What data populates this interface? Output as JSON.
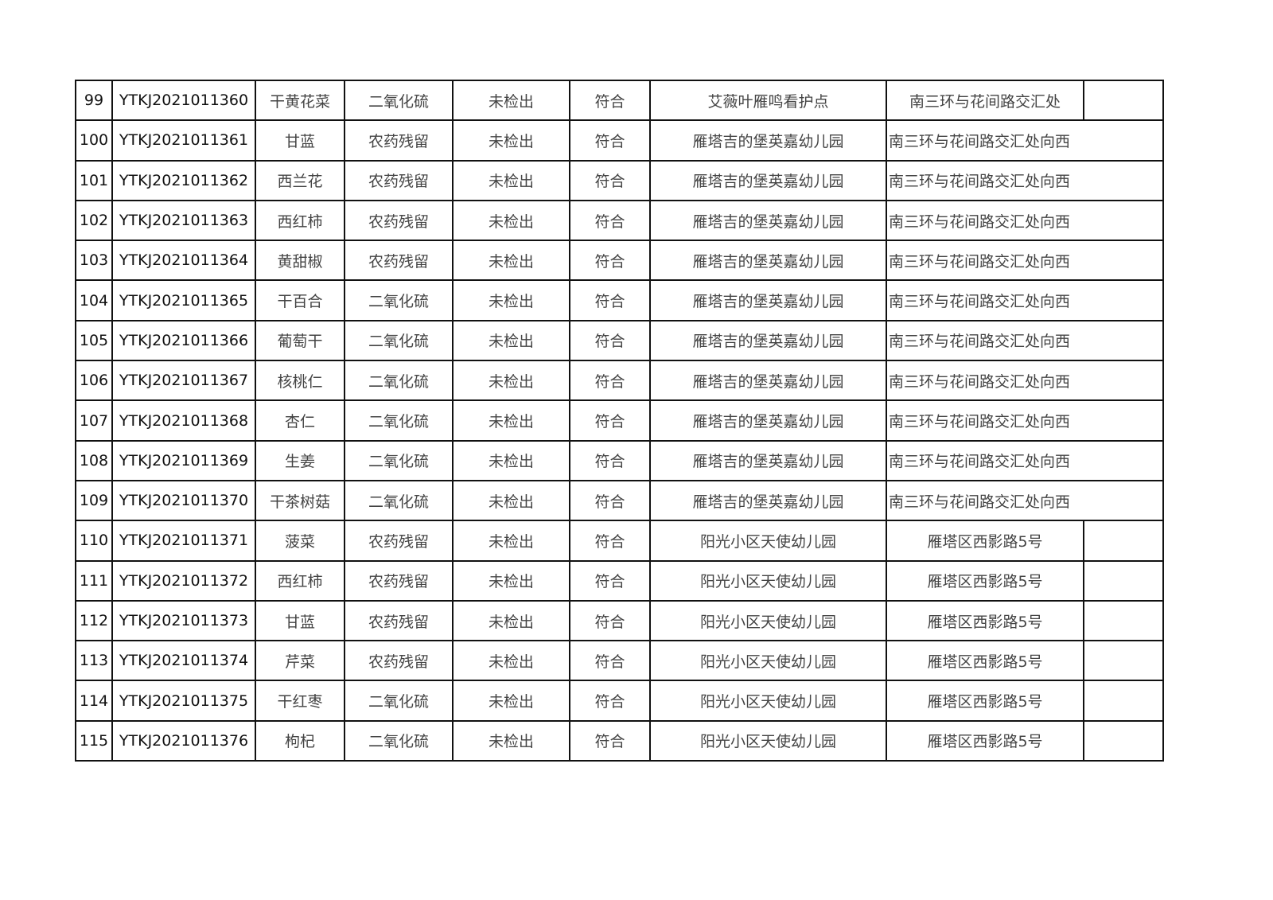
{
  "rows": [
    {
      "no": "99",
      "code": "YTKJ2021011360",
      "sample": "干黄花菜",
      "item": "二氧化硫",
      "result": "未检出",
      "verdict": "符合",
      "site": "艾薇叶雁鸣看护点",
      "address": "南三环与花间路交汇处",
      "merged": false
    },
    {
      "no": "100",
      "code": "YTKJ2021011361",
      "sample": "甘蓝",
      "item": "农药残留",
      "result": "未检出",
      "verdict": "符合",
      "site": "雁塔吉的堡英嘉幼儿园",
      "address": "南三环与花间路交汇处向西",
      "merged": true
    },
    {
      "no": "101",
      "code": "YTKJ2021011362",
      "sample": "西兰花",
      "item": "农药残留",
      "result": "未检出",
      "verdict": "符合",
      "site": "雁塔吉的堡英嘉幼儿园",
      "address": "南三环与花间路交汇处向西",
      "merged": true
    },
    {
      "no": "102",
      "code": "YTKJ2021011363",
      "sample": "西红柿",
      "item": "农药残留",
      "result": "未检出",
      "verdict": "符合",
      "site": "雁塔吉的堡英嘉幼儿园",
      "address": "南三环与花间路交汇处向西",
      "merged": true
    },
    {
      "no": "103",
      "code": "YTKJ2021011364",
      "sample": "黄甜椒",
      "item": "农药残留",
      "result": "未检出",
      "verdict": "符合",
      "site": "雁塔吉的堡英嘉幼儿园",
      "address": "南三环与花间路交汇处向西",
      "merged": true
    },
    {
      "no": "104",
      "code": "YTKJ2021011365",
      "sample": "干百合",
      "item": "二氧化硫",
      "result": "未检出",
      "verdict": "符合",
      "site": "雁塔吉的堡英嘉幼儿园",
      "address": "南三环与花间路交汇处向西",
      "merged": true
    },
    {
      "no": "105",
      "code": "YTKJ2021011366",
      "sample": "葡萄干",
      "item": "二氧化硫",
      "result": "未检出",
      "verdict": "符合",
      "site": "雁塔吉的堡英嘉幼儿园",
      "address": "南三环与花间路交汇处向西",
      "merged": true
    },
    {
      "no": "106",
      "code": "YTKJ2021011367",
      "sample": "核桃仁",
      "item": "二氧化硫",
      "result": "未检出",
      "verdict": "符合",
      "site": "雁塔吉的堡英嘉幼儿园",
      "address": "南三环与花间路交汇处向西",
      "merged": true
    },
    {
      "no": "107",
      "code": "YTKJ2021011368",
      "sample": "杏仁",
      "item": "二氧化硫",
      "result": "未检出",
      "verdict": "符合",
      "site": "雁塔吉的堡英嘉幼儿园",
      "address": "南三环与花间路交汇处向西",
      "merged": true
    },
    {
      "no": "108",
      "code": "YTKJ2021011369",
      "sample": "生姜",
      "item": "二氧化硫",
      "result": "未检出",
      "verdict": "符合",
      "site": "雁塔吉的堡英嘉幼儿园",
      "address": "南三环与花间路交汇处向西",
      "merged": true
    },
    {
      "no": "109",
      "code": "YTKJ2021011370",
      "sample": "干茶树菇",
      "item": "二氧化硫",
      "result": "未检出",
      "verdict": "符合",
      "site": "雁塔吉的堡英嘉幼儿园",
      "address": "南三环与花间路交汇处向西",
      "merged": true
    },
    {
      "no": "110",
      "code": "YTKJ2021011371",
      "sample": "菠菜",
      "item": "农药残留",
      "result": "未检出",
      "verdict": "符合",
      "site": "阳光小区天使幼儿园",
      "address": "雁塔区西影路5号",
      "merged": false
    },
    {
      "no": "111",
      "code": "YTKJ2021011372",
      "sample": "西红柿",
      "item": "农药残留",
      "result": "未检出",
      "verdict": "符合",
      "site": "阳光小区天使幼儿园",
      "address": "雁塔区西影路5号",
      "merged": false
    },
    {
      "no": "112",
      "code": "YTKJ2021011373",
      "sample": "甘蓝",
      "item": "农药残留",
      "result": "未检出",
      "verdict": "符合",
      "site": "阳光小区天使幼儿园",
      "address": "雁塔区西影路5号",
      "merged": false
    },
    {
      "no": "113",
      "code": "YTKJ2021011374",
      "sample": "芹菜",
      "item": "农药残留",
      "result": "未检出",
      "verdict": "符合",
      "site": "阳光小区天使幼儿园",
      "address": "雁塔区西影路5号",
      "merged": false
    },
    {
      "no": "114",
      "code": "YTKJ2021011375",
      "sample": "干红枣",
      "item": "二氧化硫",
      "result": "未检出",
      "verdict": "符合",
      "site": "阳光小区天使幼儿园",
      "address": "雁塔区西影路5号",
      "merged": false
    },
    {
      "no": "115",
      "code": "YTKJ2021011376",
      "sample": "枸杞",
      "item": "二氧化硫",
      "result": "未检出",
      "verdict": "符合",
      "site": "阳光小区天使幼儿园",
      "address": "雁塔区西影路5号",
      "merged": false
    }
  ]
}
